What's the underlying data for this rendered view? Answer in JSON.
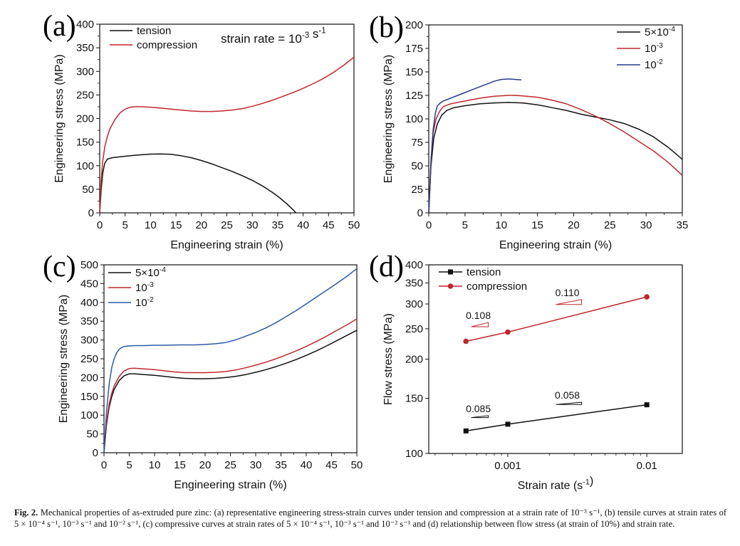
{
  "caption": {
    "label": "Fig. 2.",
    "text": "Mechanical properties of as-extruded pure zinc: (a) representative engineering stress-strain curves under tension and compression at a strain rate of 10⁻³ s⁻¹, (b) tensile curves at strain rates of 5 × 10⁻⁴ s⁻¹, 10⁻³ s⁻¹ and 10⁻² s⁻¹, (c) compressive curves at strain rates of 5 × 10⁻⁴ s⁻¹, 10⁻³ s⁻¹ and 10⁻² s⁻¹ and (d) relationship between flow stress (at strain of 10%) and strain rate."
  },
  "chart_data": [
    {
      "panel": "(a)",
      "type": "line",
      "xlabel": "Engineering strain (%)",
      "ylabel": "Engineering stress (MPa)",
      "xlim": [
        0,
        50
      ],
      "ylim": [
        0,
        400
      ],
      "xticks": [
        0,
        5,
        10,
        15,
        20,
        25,
        30,
        35,
        40,
        45,
        50
      ],
      "yticks": [
        0,
        50,
        100,
        150,
        200,
        250,
        300,
        350,
        400
      ],
      "legend_position": "top-left",
      "annotation": "strain rate = 10⁻³ s⁻¹",
      "series": [
        {
          "name": "tension",
          "color": "#111111",
          "x": [
            0,
            0.3,
            0.6,
            1.0,
            1.5,
            2.5,
            4,
            6,
            8,
            10,
            12,
            14,
            16,
            18,
            20,
            22,
            24,
            26,
            28,
            30,
            32,
            34,
            35.5,
            37,
            38,
            38.6
          ],
          "y": [
            0,
            50,
            85,
            105,
            114,
            117,
            119,
            121,
            123,
            124.5,
            125,
            124,
            121,
            117,
            111,
            104,
            96,
            88,
            79,
            69,
            57,
            43,
            31,
            17,
            7,
            0
          ]
        },
        {
          "name": "compression",
          "color": "#c0272d",
          "x": [
            0,
            0.3,
            0.6,
            1,
            1.5,
            2,
            3,
            4,
            5,
            6,
            7,
            8,
            10,
            12,
            14,
            16,
            18,
            20,
            22,
            24,
            26,
            28,
            30,
            32,
            34,
            36,
            38,
            40,
            42,
            44,
            46,
            48,
            50
          ],
          "y": [
            0,
            70,
            110,
            140,
            162,
            178,
            198,
            212,
            220,
            224,
            225,
            225,
            224,
            222,
            220,
            218,
            216,
            215,
            215,
            216,
            218,
            221,
            226,
            232,
            239,
            247,
            255,
            264,
            274,
            285,
            298,
            313,
            330
          ]
        }
      ]
    },
    {
      "panel": "(b)",
      "type": "line",
      "xlabel": "Engineering strain (%)",
      "ylabel": "Engineering stress (MPa)",
      "xlim": [
        0,
        35
      ],
      "ylim": [
        0,
        200
      ],
      "xticks": [
        0,
        5,
        10,
        15,
        20,
        25,
        30,
        35
      ],
      "yticks": [
        0,
        25,
        50,
        75,
        100,
        125,
        150,
        175,
        200
      ],
      "legend_position": "top-right",
      "series": [
        {
          "name": "5×10⁻⁴",
          "color": "#111111",
          "x": [
            0,
            0.3,
            0.7,
            1.2,
            1.8,
            2.5,
            3.5,
            5,
            7,
            9,
            11,
            13,
            15,
            17,
            19,
            21,
            23,
            25,
            27,
            29,
            31,
            33,
            35
          ],
          "y": [
            0,
            50,
            80,
            95,
            104,
            109,
            112,
            114,
            116,
            117,
            117.5,
            117,
            115,
            112,
            109,
            105,
            102,
            99,
            95,
            89,
            81,
            70,
            57
          ]
        },
        {
          "name": "10⁻³",
          "color": "#c0272d",
          "x": [
            0,
            0.3,
            0.6,
            1.0,
            1.5,
            2.0,
            3,
            5,
            7,
            9,
            11,
            12,
            13,
            15,
            17,
            19,
            21,
            23,
            25,
            27,
            29,
            31,
            33,
            35
          ],
          "y": [
            0,
            55,
            85,
            100,
            108,
            113,
            116,
            119,
            122,
            124,
            125,
            125,
            124.5,
            123,
            120,
            116,
            110,
            103,
            95,
            86,
            76,
            66,
            54,
            40
          ]
        },
        {
          "name": "10⁻²",
          "color": "#2b3a8f",
          "x": [
            0,
            0.3,
            0.6,
            0.9,
            1.2,
            1.6,
            2.0,
            3,
            4,
            5,
            6,
            7,
            8,
            9,
            10,
            11,
            12,
            12.8
          ],
          "y": [
            0,
            55,
            88,
            106,
            114,
            117,
            119,
            122,
            125,
            128,
            131,
            134,
            137,
            140,
            142,
            142.5,
            142,
            141.5
          ]
        }
      ]
    },
    {
      "panel": "(c)",
      "type": "line",
      "xlabel": "Engineering strain (%)",
      "ylabel": "Engineering stress (MPa)",
      "xlim": [
        0,
        50
      ],
      "ylim": [
        0,
        500
      ],
      "xticks": [
        0,
        5,
        10,
        15,
        20,
        25,
        30,
        35,
        40,
        45,
        50
      ],
      "yticks": [
        0,
        50,
        100,
        150,
        200,
        250,
        300,
        350,
        400,
        450,
        500
      ],
      "legend_position": "top-left",
      "series": [
        {
          "name": "5×10⁻⁴",
          "color": "#111111",
          "x": [
            0,
            0.5,
            1,
            1.5,
            2,
            3,
            4,
            5,
            6,
            8,
            10,
            12,
            14,
            16,
            18,
            20,
            22,
            24,
            26,
            28,
            30,
            32,
            34,
            36,
            38,
            40,
            42,
            44,
            46,
            48,
            50
          ],
          "y": [
            0,
            75,
            120,
            148,
            168,
            192,
            205,
            210,
            210,
            208,
            206,
            203,
            200,
            198,
            197,
            197,
            198,
            200,
            203,
            208,
            214,
            221,
            229,
            238,
            248,
            259,
            271,
            284,
            298,
            312,
            326
          ]
        },
        {
          "name": "10⁻³",
          "color": "#c0272d",
          "x": [
            0,
            0.5,
            1,
            1.5,
            2,
            3,
            4,
            5,
            6,
            8,
            10,
            12,
            14,
            16,
            18,
            20,
            22,
            24,
            26,
            28,
            30,
            32,
            34,
            36,
            38,
            40,
            42,
            44,
            46,
            48,
            50
          ],
          "y": [
            0,
            80,
            128,
            157,
            177,
            203,
            218,
            224,
            225,
            223,
            221,
            218,
            215,
            213,
            213,
            213,
            214,
            216,
            220,
            226,
            233,
            241,
            250,
            260,
            271,
            283,
            296,
            310,
            325,
            340,
            356
          ]
        },
        {
          "name": "10⁻²",
          "color": "#2b5ba8",
          "x": [
            0,
            0.5,
            1,
            1.5,
            2,
            2.5,
            3,
            3.5,
            4,
            5,
            6,
            8,
            10,
            12,
            15,
            18,
            20,
            22,
            24,
            26,
            28,
            30,
            32,
            34,
            36,
            38,
            40,
            42,
            44,
            46,
            48,
            50
          ],
          "y": [
            0,
            110,
            180,
            225,
            250,
            266,
            275,
            280,
            283,
            284,
            285,
            285,
            286,
            286,
            287,
            287,
            288,
            290,
            293,
            300,
            310,
            320,
            332,
            346,
            362,
            378,
            396,
            414,
            432,
            450,
            469,
            490
          ]
        }
      ]
    },
    {
      "panel": "(d)",
      "type": "scatter",
      "xscale": "log",
      "yscale": "log",
      "xlabel": "Strain rate (s⁻¹)",
      "ylabel": "Flow stress (MPa)",
      "xlim": [
        0.00027,
        0.018
      ],
      "ylim": [
        100,
        400
      ],
      "xticks": [
        0.001,
        0.01
      ],
      "xtick_labels": [
        "0.001",
        "0.01"
      ],
      "yticks": [
        100,
        150,
        200,
        250,
        300,
        350,
        400
      ],
      "legend_position": "top-left",
      "series": [
        {
          "name": "tension",
          "color": "#111111",
          "marker": "square",
          "x": [
            0.0005,
            0.001,
            0.01
          ],
          "y": [
            118,
            124,
            143
          ],
          "slopes": [
            {
              "value": "0.085"
            },
            {
              "value": "0.058"
            }
          ]
        },
        {
          "name": "compression",
          "color": "#c0272d",
          "marker": "circle",
          "x": [
            0.0005,
            0.001,
            0.01
          ],
          "y": [
            228,
            244,
            316
          ],
          "slopes": [
            {
              "value": "0.108"
            },
            {
              "value": "0.110"
            }
          ]
        }
      ]
    }
  ]
}
